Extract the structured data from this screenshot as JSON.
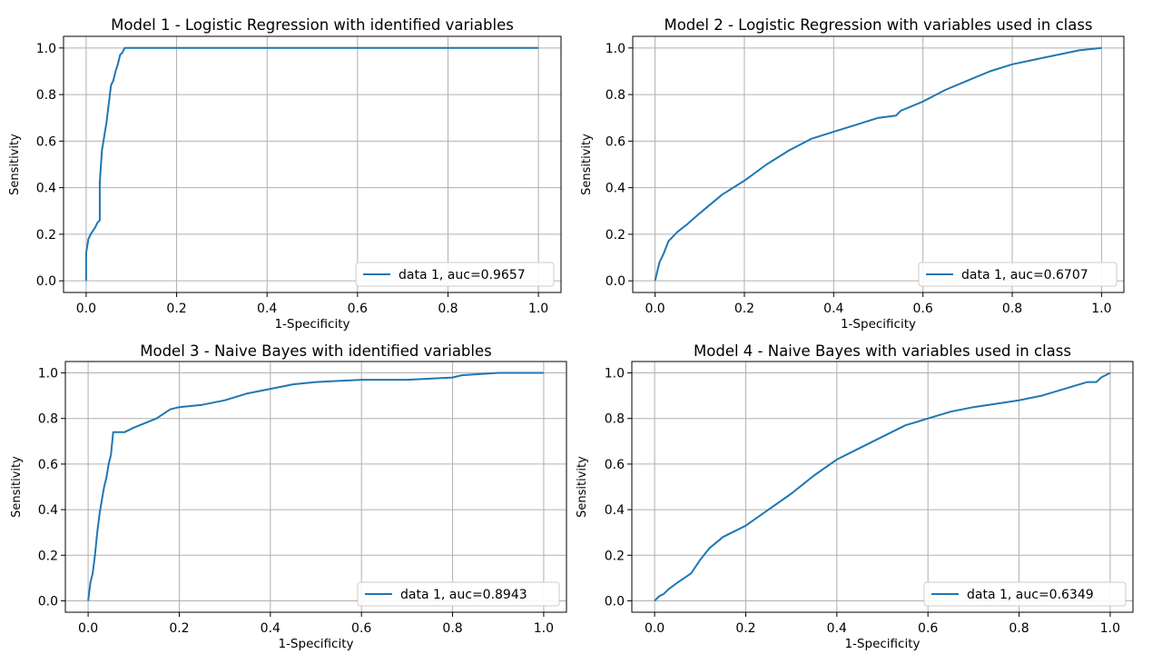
{
  "colors": {
    "line": "#1f77b4",
    "grid": "#b0b0b0",
    "axes": "#000000",
    "legend_border": "#cccccc"
  },
  "chart_data": [
    {
      "type": "line",
      "title": "Model 1 - Logistic Regression with identified variables",
      "xlabel": "1-Specificity",
      "ylabel": "Sensitivity",
      "xlim": [
        -0.05,
        1.05
      ],
      "ylim": [
        -0.05,
        1.05
      ],
      "xticks": [
        "0.0",
        "0.2",
        "0.4",
        "0.6",
        "0.8",
        "1.0"
      ],
      "yticks": [
        "0.0",
        "0.2",
        "0.4",
        "0.6",
        "0.8",
        "1.0"
      ],
      "grid": true,
      "legend": {
        "position": "lower right",
        "entries": [
          "data 1, auc=0.9657"
        ]
      },
      "series": [
        {
          "name": "data 1, auc=0.9657",
          "x": [
            0,
            0,
            0.005,
            0.01,
            0.02,
            0.025,
            0.03,
            0.03,
            0.035,
            0.04,
            0.045,
            0.05,
            0.055,
            0.06,
            0.065,
            0.07,
            0.075,
            0.08,
            0.085,
            0.09,
            1.0
          ],
          "y": [
            0,
            0.12,
            0.18,
            0.2,
            0.23,
            0.25,
            0.26,
            0.42,
            0.56,
            0.62,
            0.68,
            0.76,
            0.84,
            0.86,
            0.9,
            0.93,
            0.97,
            0.98,
            1.0,
            1.0,
            1.0
          ]
        }
      ]
    },
    {
      "type": "line",
      "title": "Model 2 - Logistic Regression with variables used in class",
      "xlabel": "1-Specificity",
      "ylabel": "Sensitivity",
      "xlim": [
        -0.05,
        1.05
      ],
      "ylim": [
        -0.05,
        1.05
      ],
      "xticks": [
        "0.0",
        "0.2",
        "0.4",
        "0.6",
        "0.8",
        "1.0"
      ],
      "yticks": [
        "0.0",
        "0.2",
        "0.4",
        "0.6",
        "0.8",
        "1.0"
      ],
      "grid": true,
      "legend": {
        "position": "lower right",
        "entries": [
          "data 1, auc=0.6707"
        ]
      },
      "series": [
        {
          "name": "data 1, auc=0.6707",
          "x": [
            0,
            0.005,
            0.01,
            0.02,
            0.03,
            0.05,
            0.07,
            0.1,
            0.15,
            0.2,
            0.25,
            0.3,
            0.35,
            0.4,
            0.45,
            0.5,
            0.54,
            0.55,
            0.6,
            0.65,
            0.7,
            0.75,
            0.8,
            0.85,
            0.9,
            0.95,
            1.0
          ],
          "y": [
            0,
            0.04,
            0.08,
            0.12,
            0.17,
            0.21,
            0.24,
            0.29,
            0.37,
            0.43,
            0.5,
            0.56,
            0.61,
            0.64,
            0.67,
            0.7,
            0.71,
            0.73,
            0.77,
            0.82,
            0.86,
            0.9,
            0.93,
            0.95,
            0.97,
            0.99,
            1.0
          ]
        }
      ]
    },
    {
      "type": "line",
      "title": "Model 3 - Naive Bayes with identified variables",
      "xlabel": "1-Specificity",
      "ylabel": "Sensitivity",
      "xlim": [
        -0.05,
        1.05
      ],
      "ylim": [
        -0.05,
        1.05
      ],
      "xticks": [
        "0.0",
        "0.2",
        "0.4",
        "0.6",
        "0.8",
        "1.0"
      ],
      "yticks": [
        "0.0",
        "0.2",
        "0.4",
        "0.6",
        "0.8",
        "1.0"
      ],
      "grid": true,
      "legend": {
        "position": "lower right",
        "entries": [
          "data 1, auc=0.8943"
        ]
      },
      "series": [
        {
          "name": "data 1, auc=0.8943",
          "x": [
            0,
            0.005,
            0.01,
            0.015,
            0.02,
            0.025,
            0.03,
            0.035,
            0.04,
            0.045,
            0.05,
            0.055,
            0.06,
            0.08,
            0.1,
            0.15,
            0.18,
            0.2,
            0.25,
            0.3,
            0.35,
            0.4,
            0.45,
            0.5,
            0.6,
            0.7,
            0.8,
            0.82,
            0.9,
            1.0
          ],
          "y": [
            0,
            0.08,
            0.12,
            0.2,
            0.3,
            0.38,
            0.44,
            0.5,
            0.54,
            0.6,
            0.64,
            0.74,
            0.74,
            0.74,
            0.76,
            0.8,
            0.84,
            0.85,
            0.86,
            0.88,
            0.91,
            0.93,
            0.95,
            0.96,
            0.97,
            0.97,
            0.98,
            0.99,
            1.0,
            1.0
          ]
        }
      ]
    },
    {
      "type": "line",
      "title": "Model 4 - Naive Bayes with variables used in class",
      "xlabel": "1-Specificity",
      "ylabel": "Sensitivity",
      "xlim": [
        -0.05,
        1.05
      ],
      "ylim": [
        -0.05,
        1.05
      ],
      "xticks": [
        "0.0",
        "0.2",
        "0.4",
        "0.6",
        "0.8",
        "1.0"
      ],
      "yticks": [
        "0.0",
        "0.2",
        "0.4",
        "0.6",
        "0.8",
        "1.0"
      ],
      "grid": true,
      "legend": {
        "position": "lower right",
        "entries": [
          "data 1, auc=0.6349"
        ]
      },
      "series": [
        {
          "name": "data 1, auc=0.6349",
          "x": [
            0,
            0.01,
            0.02,
            0.03,
            0.05,
            0.08,
            0.1,
            0.12,
            0.15,
            0.2,
            0.25,
            0.3,
            0.35,
            0.4,
            0.45,
            0.5,
            0.55,
            0.6,
            0.65,
            0.7,
            0.8,
            0.85,
            0.9,
            0.95,
            0.97,
            0.98,
            1.0
          ],
          "y": [
            0,
            0.02,
            0.03,
            0.05,
            0.08,
            0.12,
            0.18,
            0.23,
            0.28,
            0.33,
            0.4,
            0.47,
            0.55,
            0.62,
            0.67,
            0.72,
            0.77,
            0.8,
            0.83,
            0.85,
            0.88,
            0.9,
            0.93,
            0.96,
            0.96,
            0.98,
            1.0
          ]
        }
      ]
    }
  ]
}
